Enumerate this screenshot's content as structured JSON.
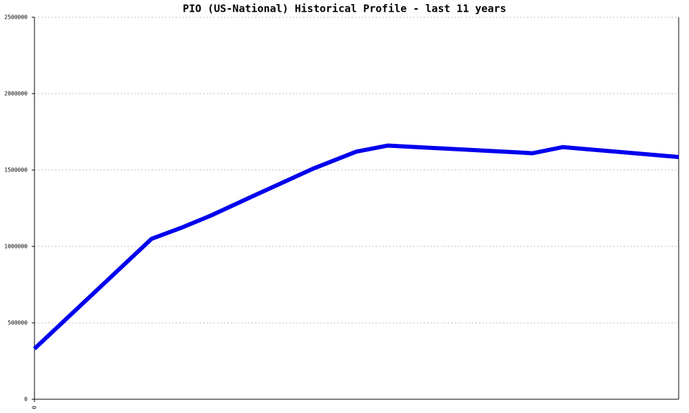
{
  "chart_data": {
    "type": "line",
    "title": "PIO (US-National) Historical Profile - last 11 years",
    "x": [
      0,
      170,
      212,
      255,
      315,
      405,
      467,
      513,
      723,
      767,
      935
    ],
    "series": [
      {
        "color": "#0000ee",
        "values": [
          330000,
          1050000,
          1120000,
          1200000,
          1325000,
          1510000,
          1620000,
          1660000,
          1610000,
          1650000,
          1585000
        ]
      }
    ],
    "xlim": [
      0,
      935
    ],
    "xticks": [
      0
    ],
    "ylim": [
      0,
      2500000
    ],
    "yticks": [
      0,
      500000,
      1000000,
      1500000,
      2000000,
      2500000
    ],
    "grid": true
  }
}
